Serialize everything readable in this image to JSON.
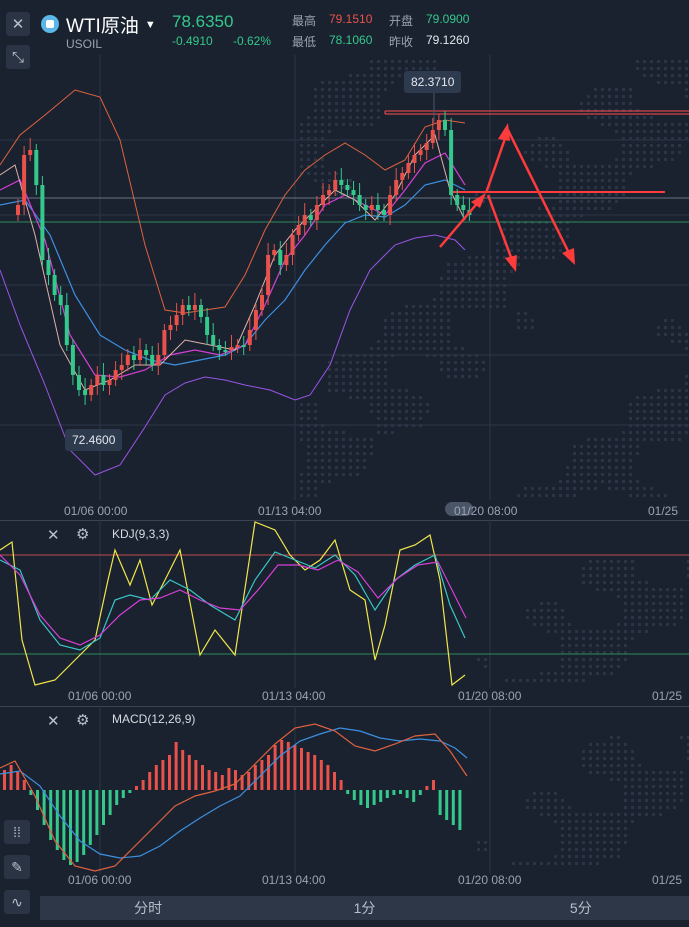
{
  "header": {
    "title": "WTI原油",
    "symbol": "USOIL",
    "price": "78.6350",
    "change": "-0.4910",
    "change_pct": "-0.62%",
    "high_label": "最高",
    "high": "79.1510",
    "open_label": "开盘",
    "open": "79.0900",
    "low_label": "最低",
    "low": "78.1060",
    "prev_close_label": "昨收",
    "prev_close": "79.1260"
  },
  "main_chart": {
    "max_tag": "82.3710",
    "min_tag": "72.4600",
    "x_labels": [
      "01/06 00:00",
      "01/13 04:00",
      "01/20 08:00",
      "01/25"
    ]
  },
  "kdj_panel": {
    "title": "KDJ(9,3,3)",
    "x_labels": [
      "01/06 00:00",
      "01/13 04:00",
      "01/20 08:00",
      "01/25"
    ]
  },
  "macd_panel": {
    "title": "MACD(12,26,9)",
    "x_labels": [
      "01/06 00:00",
      "01/13 04:00",
      "01/20 08:00",
      "01/25"
    ]
  },
  "tabs": [
    "分时",
    "1分",
    "5分"
  ],
  "colors": {
    "up": "#e8524a",
    "down": "#35c88b",
    "ma_white": "#e0b0a8",
    "ma_magenta": "#d63fd6",
    "ma_blue": "#3d8fe0",
    "boll_purple": "#9a55e6",
    "boll_orange": "#e0623e",
    "kdj_yellow": "#f2e64a",
    "annotation": "#ff3b3b"
  }
}
